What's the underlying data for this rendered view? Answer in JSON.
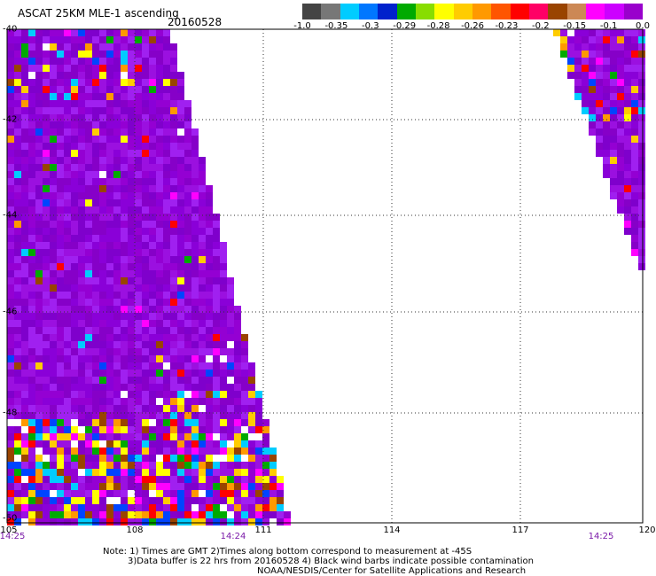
{
  "header": {
    "title": "ASCAT 25KM MLE-1 ascending",
    "date": "20160528"
  },
  "colorbar": {
    "colors": [
      "#444444",
      "#777777",
      "#00ccff",
      "#0077ff",
      "#0022cc",
      "#00aa00",
      "#88dd00",
      "#ffff00",
      "#ffcc00",
      "#ff9900",
      "#ff5500",
      "#ff0000",
      "#ff0066",
      "#994400",
      "#cc8855",
      "#ff00ff",
      "#cc00ff",
      "#9900cc"
    ],
    "labels": [
      "-1.0",
      "-0.35",
      "-0.3",
      "-0.29",
      "-0.28",
      "-0.26",
      "-0.23",
      "-0.2",
      "-0.15",
      "-0.1",
      "0.0"
    ]
  },
  "axes": {
    "lat_labels": [
      "-40",
      "-42",
      "-44",
      "-46",
      "-48",
      "-50"
    ],
    "lon_labels": [
      "105",
      "108",
      "111",
      "114",
      "117",
      "120"
    ]
  },
  "times": [
    "14:25",
    "14:24",
    "14:25"
  ],
  "notes": [
    "Note: 1) Times are GMT 2)Times along bottom correspond to measurement at -45S",
    "3)Data buffer is 22 hrs from 20160528 4) Black wind barbs indicate possible contamination",
    "NOAA/NESDIS/Center for Satellite Applications and Research"
  ]
}
